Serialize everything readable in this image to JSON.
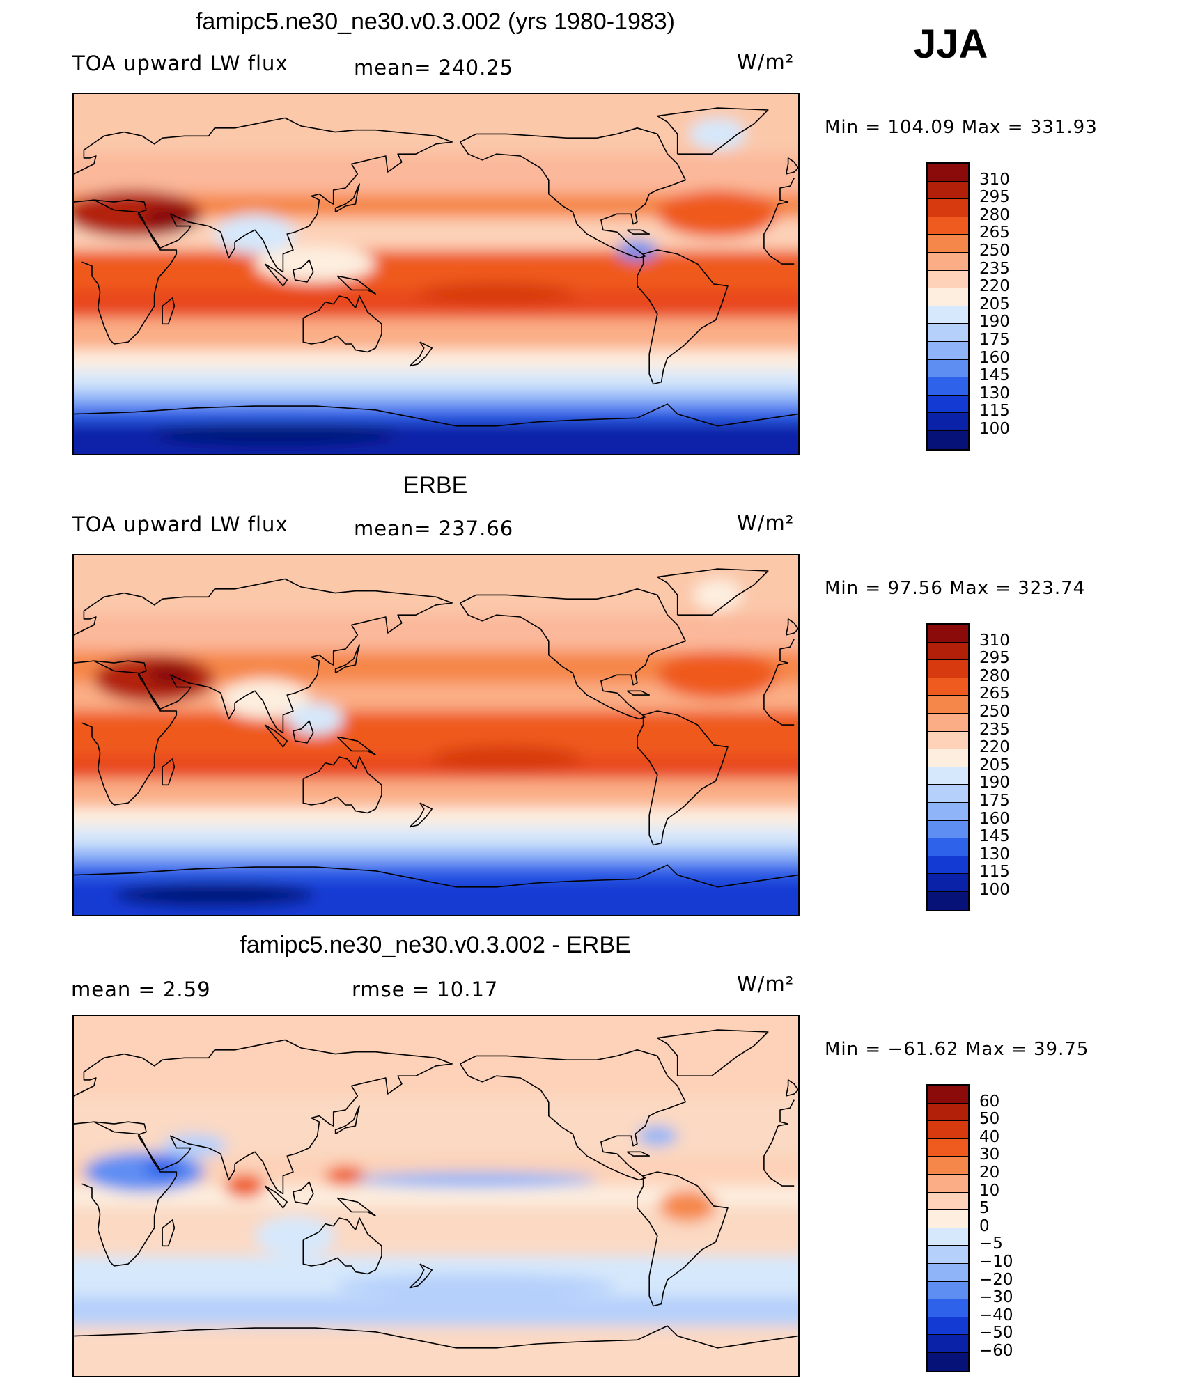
{
  "season": "JJA",
  "panels": [
    {
      "title": "famipc5.ne30_ne30.v0.3.002 (yrs 1980-1983)",
      "left_text": "TOA upward LW flux",
      "center_text": "mean= 240.25",
      "units": "W/m²",
      "minmax": "Min = 104.09 Max = 331.93",
      "colorbar_labels": [
        "310",
        "295",
        "280",
        "265",
        "250",
        "235",
        "220",
        "205",
        "190",
        "175",
        "160",
        "145",
        "130",
        "115",
        "100"
      ],
      "colorbar_colors": [
        "#8b0a0a",
        "#b3200a",
        "#d83a0f",
        "#ef5a1e",
        "#f6874a",
        "#fbae86",
        "#fdd2b8",
        "#fdeedf",
        "#d6e8fb",
        "#b5d0fb",
        "#8fb4f8",
        "#5f8ef3",
        "#2f62ea",
        "#133ad3",
        "#0a22a8",
        "#061278"
      ],
      "map": {
        "bands": [
          {
            "from": 90,
            "to": 60,
            "color": "#fbc8aa"
          },
          {
            "from": 60,
            "to": 40,
            "color": "#fbb89a"
          },
          {
            "from": 40,
            "to": 28,
            "color": "#f6874a"
          },
          {
            "from": 28,
            "to": 12,
            "color": "#fdd2b8"
          },
          {
            "from": 12,
            "to": -8,
            "color": "#ef5a1e"
          },
          {
            "from": -8,
            "to": -22,
            "color": "#e8471a"
          },
          {
            "from": -22,
            "to": -38,
            "color": "#fbae86"
          },
          {
            "from": -38,
            "to": -48,
            "color": "#fdeedf"
          },
          {
            "from": -48,
            "to": -58,
            "color": "#d6e8fb"
          },
          {
            "from": -58,
            "to": -66,
            "color": "#8fb4f8"
          },
          {
            "from": -66,
            "to": -74,
            "color": "#2f62ea"
          },
          {
            "from": -74,
            "to": -90,
            "color": "#0a22a8"
          }
        ],
        "blobs": [
          {
            "lon": 30,
            "lat": 30,
            "rx": 34,
            "ry": 12,
            "color": "#b3200a"
          },
          {
            "lon": 48,
            "lat": 28,
            "rx": 14,
            "ry": 7,
            "color": "#8b0a0a"
          },
          {
            "lon": 90,
            "lat": 20,
            "rx": 20,
            "ry": 10,
            "color": "#d6e8fb"
          },
          {
            "lon": 120,
            "lat": 5,
            "rx": 30,
            "ry": 9,
            "color": "#fdeedf"
          },
          {
            "lon": 210,
            "lat": -10,
            "rx": 40,
            "ry": 6,
            "color": "#d83a0f"
          },
          {
            "lon": 280,
            "lat": 12,
            "rx": 10,
            "ry": 5,
            "color": "#5f8ef3"
          },
          {
            "lon": 320,
            "lat": 30,
            "rx": 30,
            "ry": 12,
            "color": "#ef5a1e"
          },
          {
            "lon": 320,
            "lat": 70,
            "rx": 14,
            "ry": 8,
            "color": "#d6e8fb"
          },
          {
            "lon": 100,
            "lat": -80,
            "rx": 60,
            "ry": 6,
            "color": "#061278"
          }
        ]
      }
    },
    {
      "title": "ERBE",
      "left_text": "TOA upward LW flux",
      "center_text": "mean= 237.66",
      "units": "W/m²",
      "minmax": "Min = 97.56 Max = 323.74",
      "colorbar_labels": [
        "310",
        "295",
        "280",
        "265",
        "250",
        "235",
        "220",
        "205",
        "190",
        "175",
        "160",
        "145",
        "130",
        "115",
        "100"
      ],
      "colorbar_colors": [
        "#8b0a0a",
        "#b3200a",
        "#d83a0f",
        "#ef5a1e",
        "#f6874a",
        "#fbae86",
        "#fdd2b8",
        "#fdeedf",
        "#d6e8fb",
        "#b5d0fb",
        "#8fb4f8",
        "#5f8ef3",
        "#2f62ea",
        "#133ad3",
        "#0a22a8",
        "#061278"
      ],
      "map": {
        "bands": [
          {
            "from": 90,
            "to": 60,
            "color": "#fbc8aa"
          },
          {
            "from": 60,
            "to": 42,
            "color": "#fbb89a"
          },
          {
            "from": 42,
            "to": 26,
            "color": "#f6874a"
          },
          {
            "from": 26,
            "to": 12,
            "color": "#fbae86"
          },
          {
            "from": 12,
            "to": -10,
            "color": "#ef5a1e"
          },
          {
            "from": -10,
            "to": -22,
            "color": "#e8471a"
          },
          {
            "from": -22,
            "to": -36,
            "color": "#fbae86"
          },
          {
            "from": -36,
            "to": -46,
            "color": "#fdeedf"
          },
          {
            "from": -46,
            "to": -56,
            "color": "#d6e8fb"
          },
          {
            "from": -56,
            "to": -64,
            "color": "#8fb4f8"
          },
          {
            "from": -64,
            "to": -72,
            "color": "#2f62ea"
          },
          {
            "from": -72,
            "to": -90,
            "color": "#133ad3"
          }
        ],
        "blobs": [
          {
            "lon": 40,
            "lat": 28,
            "rx": 30,
            "ry": 12,
            "color": "#b3200a"
          },
          {
            "lon": 48,
            "lat": 30,
            "rx": 12,
            "ry": 6,
            "color": "#8b0a0a"
          },
          {
            "lon": 95,
            "lat": 18,
            "rx": 22,
            "ry": 10,
            "color": "#fdeedf"
          },
          {
            "lon": 120,
            "lat": 8,
            "rx": 14,
            "ry": 8,
            "color": "#d6e8fb"
          },
          {
            "lon": 215,
            "lat": -12,
            "rx": 38,
            "ry": 7,
            "color": "#d83a0f"
          },
          {
            "lon": 320,
            "lat": 30,
            "rx": 30,
            "ry": 12,
            "color": "#ef5a1e"
          },
          {
            "lon": 320,
            "lat": 70,
            "rx": 12,
            "ry": 8,
            "color": "#fdeedf"
          },
          {
            "lon": 70,
            "lat": -80,
            "rx": 50,
            "ry": 6,
            "color": "#061278"
          }
        ]
      }
    },
    {
      "title": "famipc5.ne30_ne30.v0.3.002 - ERBE",
      "left_text": "mean =   2.59",
      "center_text": "rmse =  10.17",
      "units": "W/m²",
      "minmax": "Min = −61.62 Max =  39.75",
      "colorbar_labels": [
        "60",
        "50",
        "40",
        "30",
        "20",
        "10",
        "5",
        "0",
        "−5",
        "−10",
        "−20",
        "−30",
        "−40",
        "−50",
        "−60"
      ],
      "colorbar_colors": [
        "#8b0a0a",
        "#b3200a",
        "#d83a0f",
        "#ef5a1e",
        "#f6874a",
        "#fbae86",
        "#fdd2b8",
        "#fdeedf",
        "#d6e8fb",
        "#b5d0fb",
        "#8fb4f8",
        "#5f8ef3",
        "#2f62ea",
        "#133ad3",
        "#0a22a8",
        "#061278"
      ],
      "map": {
        "bands": [
          {
            "from": 90,
            "to": 50,
            "color": "#fdd2b8"
          },
          {
            "from": 50,
            "to": 20,
            "color": "#fbd9c3"
          },
          {
            "from": 20,
            "to": 5,
            "color": "#fdd2b8"
          },
          {
            "from": 5,
            "to": -5,
            "color": "#fdeedf"
          },
          {
            "from": -5,
            "to": -30,
            "color": "#fbd9c3"
          },
          {
            "from": -30,
            "to": -50,
            "color": "#d6e8fb"
          },
          {
            "from": -50,
            "to": -65,
            "color": "#b5d0fb"
          },
          {
            "from": -65,
            "to": -90,
            "color": "#fbd9c3"
          }
        ],
        "blobs": [
          {
            "lon": 35,
            "lat": 12,
            "rx": 30,
            "ry": 10,
            "color": "#5f8ef3"
          },
          {
            "lon": 45,
            "lat": 14,
            "rx": 10,
            "ry": 5,
            "color": "#2f62ea"
          },
          {
            "lon": 85,
            "lat": 5,
            "rx": 10,
            "ry": 6,
            "color": "#ef5a1e"
          },
          {
            "lon": 135,
            "lat": 10,
            "rx": 10,
            "ry": 5,
            "color": "#ef5a1e"
          },
          {
            "lon": 200,
            "lat": 8,
            "rx": 60,
            "ry": 4,
            "color": "#8fb4f8"
          },
          {
            "lon": 305,
            "lat": -5,
            "rx": 14,
            "ry": 8,
            "color": "#f6874a"
          },
          {
            "lon": 110,
            "lat": -20,
            "rx": 20,
            "ry": 10,
            "color": "#d6e8fb"
          },
          {
            "lon": 200,
            "lat": -45,
            "rx": 70,
            "ry": 6,
            "color": "#b5d0fb"
          },
          {
            "lon": 290,
            "lat": 30,
            "rx": 10,
            "ry": 5,
            "color": "#8fb4f8"
          },
          {
            "lon": 60,
            "lat": 25,
            "rx": 16,
            "ry": 6,
            "color": "#b5d0fb"
          }
        ]
      }
    }
  ]
}
